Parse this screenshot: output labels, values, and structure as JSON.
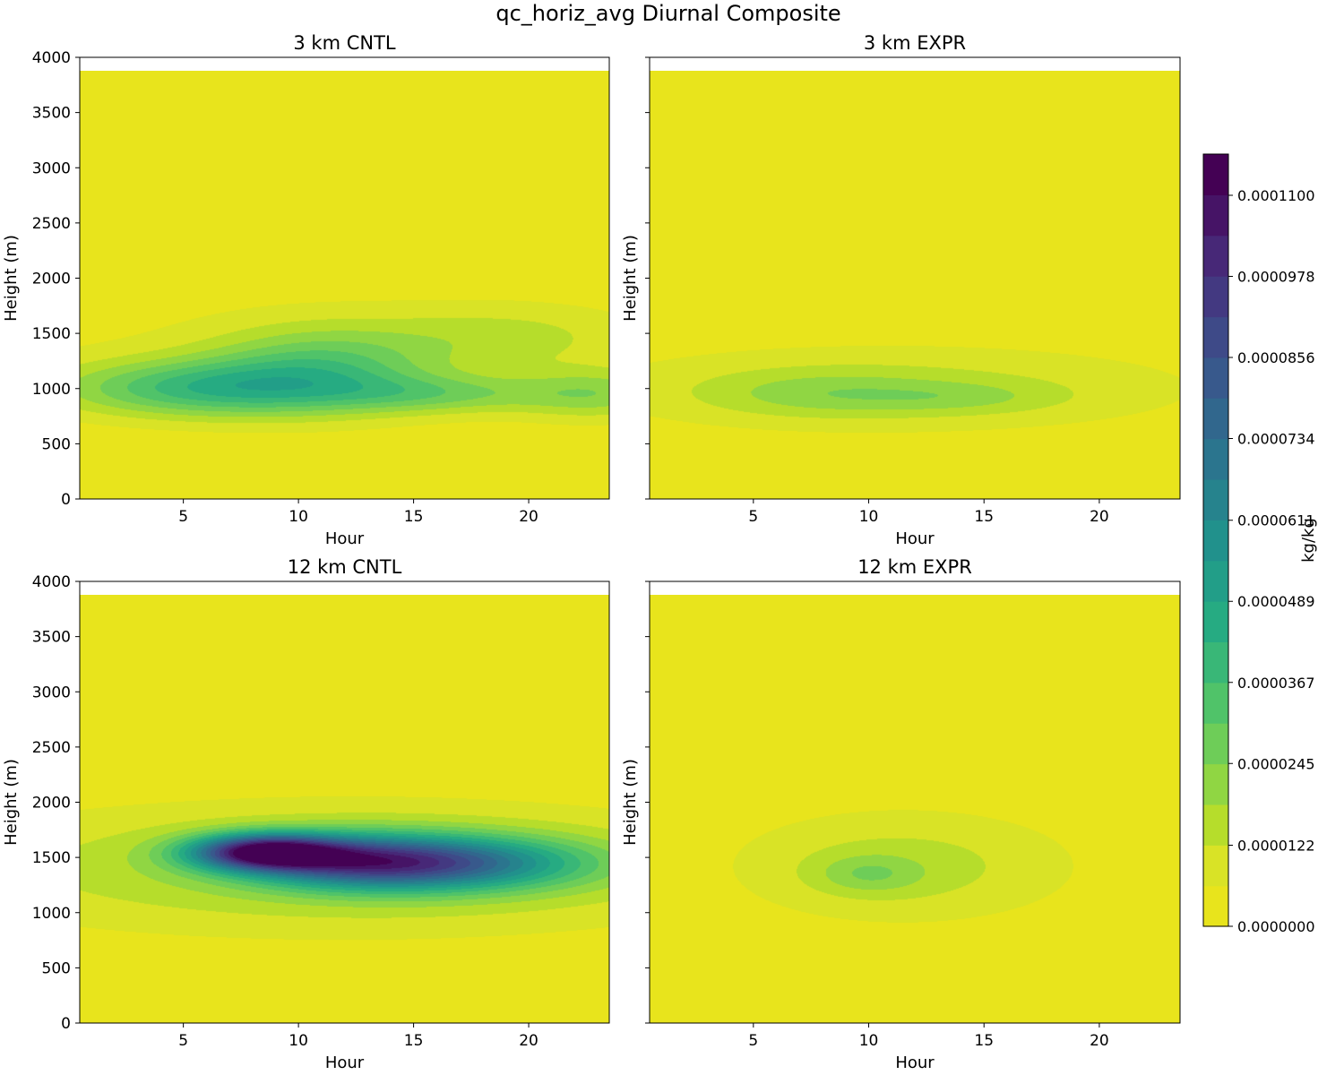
{
  "figure": {
    "title": "qc_horiz_avg Diurnal Composite"
  },
  "colors": {
    "zero": "#e8e41c",
    "viridis": [
      "#fde725",
      "#bddf26",
      "#7ad151",
      "#44bf70",
      "#22a884",
      "#21918c",
      "#2a788e",
      "#355f8d",
      "#414487",
      "#482475",
      "#440154"
    ]
  },
  "colorbar": {
    "label": "kg/kg",
    "min": 0,
    "max": 0.0001162,
    "levels": 19,
    "tick_values": [
      0,
      1.22e-05,
      2.45e-05,
      3.67e-05,
      4.89e-05,
      6.11e-05,
      7.34e-05,
      8.56e-05,
      9.78e-05,
      0.00011
    ],
    "tick_labels": [
      "0.0000000",
      "0.0000122",
      "0.0000245",
      "0.0000367",
      "0.0000489",
      "0.0000611",
      "0.0000734",
      "0.0000856",
      "0.0000978",
      "0.0001100"
    ]
  },
  "chart_data": [
    {
      "type": "heatmap",
      "title": "3 km CNTL",
      "xlabel": "Hour",
      "ylabel": "Height (m)",
      "xlim": [
        0.5,
        23.5
      ],
      "ylim": [
        0,
        4000
      ],
      "data_top": 3880,
      "xticks": [
        5,
        10,
        15,
        20
      ],
      "yticks": [
        0,
        500,
        1000,
        1500,
        2000,
        2500,
        3000,
        3500,
        4000
      ],
      "ytick_labels_shown": true,
      "blobs": [
        {
          "x": 12,
          "y": 1280,
          "sx": 14,
          "sy": 520,
          "a": 6e-06
        },
        {
          "x": 6,
          "y": 1000,
          "sx": 4.5,
          "sy": 180,
          "a": 3.4e-05
        },
        {
          "x": 11,
          "y": 1200,
          "sx": 3.5,
          "sy": 260,
          "a": 2.4e-05
        },
        {
          "x": 16,
          "y": 950,
          "sx": 3.5,
          "sy": 120,
          "a": 1.8e-05
        },
        {
          "x": 19,
          "y": 1480,
          "sx": 4,
          "sy": 200,
          "a": 1e-05
        },
        {
          "x": 23,
          "y": 950,
          "sx": 2.5,
          "sy": 160,
          "a": 1.8e-05
        }
      ]
    },
    {
      "type": "heatmap",
      "title": "3 km EXPR",
      "xlabel": "Hour",
      "ylabel": "Height (m)",
      "xlim": [
        0.5,
        23.5
      ],
      "ylim": [
        0,
        4000
      ],
      "data_top": 3880,
      "xticks": [
        5,
        10,
        15,
        20
      ],
      "yticks": [
        0,
        500,
        1000,
        1500,
        2000,
        2500,
        3000,
        3500,
        4000
      ],
      "ytick_labels_shown": false,
      "blobs": [
        {
          "x": 11,
          "y": 1000,
          "sx": 10,
          "sy": 300,
          "a": 1.4e-05
        },
        {
          "x": 8,
          "y": 950,
          "sx": 3.5,
          "sy": 140,
          "a": 1e-05
        },
        {
          "x": 14,
          "y": 920,
          "sx": 3,
          "sy": 100,
          "a": 8e-06
        }
      ]
    },
    {
      "type": "heatmap",
      "title": "12 km CNTL",
      "xlabel": "Hour",
      "ylabel": "Height (m)",
      "xlim": [
        0.5,
        23.5
      ],
      "ylim": [
        0,
        4000
      ],
      "data_top": 3880,
      "xticks": [
        5,
        10,
        15,
        20
      ],
      "yticks": [
        0,
        500,
        1000,
        1500,
        2000,
        2500,
        3000,
        3500,
        4000
      ],
      "ytick_labels_shown": true,
      "blobs": [
        {
          "x": 12,
          "y": 1400,
          "sx": 13,
          "sy": 420,
          "a": 2e-05
        },
        {
          "x": 8.5,
          "y": 1550,
          "sx": 2.2,
          "sy": 110,
          "a": 9e-05
        },
        {
          "x": 15.5,
          "y": 1450,
          "sx": 4.5,
          "sy": 170,
          "a": 6.8e-05
        },
        {
          "x": 12,
          "y": 1480,
          "sx": 3,
          "sy": 160,
          "a": 3e-05
        }
      ]
    },
    {
      "type": "heatmap",
      "title": "12 km EXPR",
      "xlabel": "Hour",
      "ylabel": "Height (m)",
      "xlim": [
        0.5,
        23.5
      ],
      "ylim": [
        0,
        4000
      ],
      "data_top": 3880,
      "xticks": [
        5,
        10,
        15,
        20
      ],
      "yticks": [
        0,
        500,
        1000,
        1500,
        2000,
        2500,
        3000,
        3500,
        4000
      ],
      "ytick_labels_shown": false,
      "blobs": [
        {
          "x": 11.5,
          "y": 1420,
          "sx": 5.5,
          "sy": 380,
          "a": 1.5e-05
        },
        {
          "x": 10,
          "y": 1350,
          "sx": 1.6,
          "sy": 120,
          "a": 1.2e-05
        }
      ]
    }
  ]
}
